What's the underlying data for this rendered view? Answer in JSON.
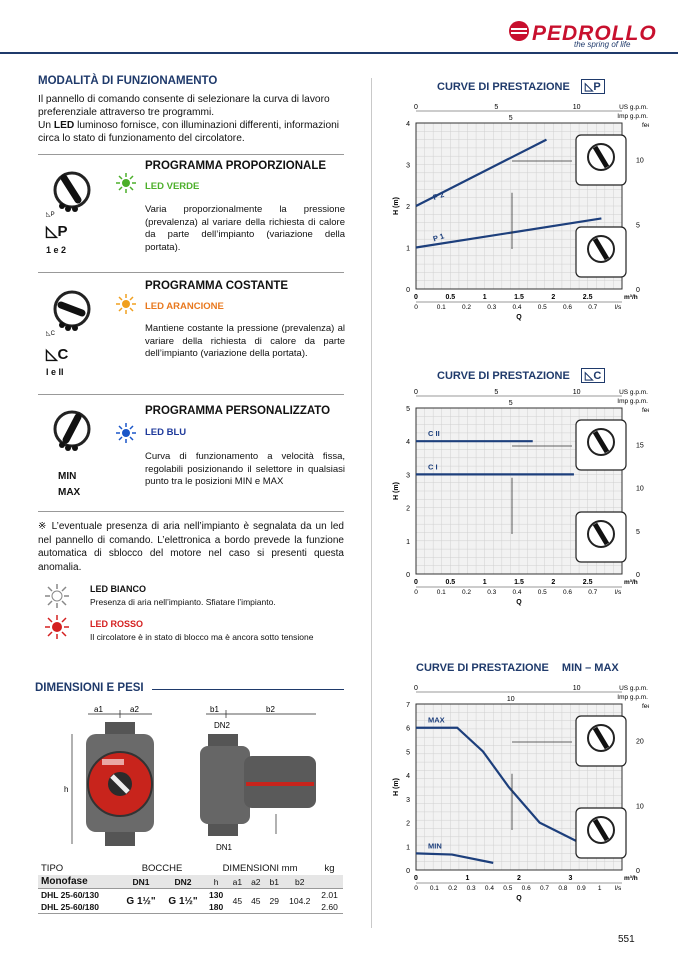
{
  "header": {
    "brand": "PEDROLLO",
    "tagline": "the spring of life"
  },
  "modes": {
    "title": "MODALITÀ DI FUNZIONAMENTO",
    "intro1": "Il pannello di comando consente di selezionare la curva di lavoro preferenziale attraverso tre programmi.",
    "intro2a": "Un ",
    "intro2b": "LED",
    "intro2c": " luminoso fornisce, con illuminazioni differenti, informazioni circa lo stato di funzionamento del circolatore.",
    "programs": [
      {
        "title": "PROGRAMMA PROPORZIONALE",
        "led": "LED VERDE",
        "led_color": "#4caf2a",
        "desc": "Varia proporzionalmente la pressione (prevalenza) al variare della richiesta di calore da parte dell’impianto (variazione della portata).",
        "symbol": "P",
        "labels": "1 e 2"
      },
      {
        "title": "PROGRAMMA COSTANTE",
        "led": "LED ARANCIONE",
        "led_color": "#f0a020",
        "led_text_color": "#e8781e",
        "desc": "Mantiene costante la pressione (prevalenza) al variare della richiesta di calore da parte dell’impianto (variazione della portata).",
        "symbol": "C",
        "labels": "I e II"
      },
      {
        "title": "PROGRAMMA PERSONALIZZATO",
        "led": "LED BLU",
        "led_color": "#1a56c8",
        "led_text_color": "#1f3a9b",
        "desc": "Curva di funzionamento a velocità fissa, regolabili posizionando il selettore in qualsiasi punto tra le posizioni MIN e MAX",
        "symbol_min": "MIN",
        "symbol_max": "MAX"
      }
    ],
    "note": "※ L’eventuale presenza di aria nell’impianto è segnalata da un led nel pannello di comando. L’elettronica a bordo prevede la funzione automatica di sblocco del motore nel caso si presenti questa anomalia.",
    "led_white": {
      "title": "LED BIANCO",
      "desc": "Presenza di aria nell’impianto. Sfiatare l’impianto."
    },
    "led_red": {
      "title": "LED ROSSO",
      "desc": "Il circolatore è in stato di blocco ma è ancora sotto tensione",
      "color": "#d42020"
    }
  },
  "dimensions": {
    "title": "DIMENSIONI E PESI",
    "labels": {
      "a1": "a1",
      "a2": "a2",
      "b1": "b1",
      "b2": "b2",
      "dn1": "DN1",
      "dn2": "DN2",
      "h": "h"
    },
    "table": {
      "h_tipo": "TIPO",
      "h_monofase": "Monofase",
      "h_bocche": "BOCCHE",
      "h_dn1": "DN1",
      "h_dn2": "DN2",
      "h_dim": "DIMENSIONI mm",
      "h_kg": "kg",
      "cols": [
        "h",
        "a1",
        "a2",
        "b1",
        "b2"
      ],
      "rows": [
        {
          "model": "DHL 25-60/130",
          "h": "130",
          "kg": "2.01"
        },
        {
          "model": "DHL 25-60/180",
          "h": "180",
          "kg": "2.60"
        }
      ],
      "dn1": "G 1½\"",
      "dn2": "G 1½\"",
      "a1": "45",
      "a2": "45",
      "b1": "29",
      "b2": "104.2"
    }
  },
  "charts": {
    "title": "CURVE DI PRESTAZIONE",
    "units": {
      "usgpm": "US g.p.m.",
      "impgpm": "Imp g.p.m.",
      "feet": "feet",
      "m3h": "m³/h",
      "ls": "l/s",
      "H": "H (m)",
      "Q": "Q"
    },
    "chart_p_symbol": "P",
    "chart_c_symbol": "C",
    "chart_mm_symbol": "MIN – MAX"
  },
  "chart_data": [
    {
      "type": "line",
      "title": "CURVE DI PRESTAZIONE P",
      "xlabel": "Q",
      "ylabel": "H (m)",
      "xlim": [
        0,
        3
      ],
      "ylim": [
        0,
        4
      ],
      "x_ticks": [
        "0",
        "0.5",
        "1",
        "1.5",
        "2",
        "2.5"
      ],
      "y_ticks": [
        "0",
        "1",
        "2",
        "3",
        "4"
      ],
      "ls_ticks": [
        "0",
        "0.1",
        "0.2",
        "0.3",
        "0.4",
        "0.5",
        "0.6",
        "0.7",
        "l/s"
      ],
      "us_ticks": [
        "0",
        "5",
        "10"
      ],
      "imp_ticks": [
        "5"
      ],
      "ft_ticks": [
        "0",
        "5",
        "10"
      ],
      "series": [
        {
          "name": "P 2",
          "x": [
            0,
            1.9
          ],
          "y": [
            2.0,
            3.6
          ]
        },
        {
          "name": "P 1",
          "x": [
            0,
            2.7
          ],
          "y": [
            1.0,
            1.7
          ]
        }
      ]
    },
    {
      "type": "line",
      "title": "CURVE DI PRESTAZIONE C",
      "xlabel": "Q",
      "ylabel": "H (m)",
      "xlim": [
        0,
        3
      ],
      "ylim": [
        0,
        5
      ],
      "x_ticks": [
        "0",
        "0.5",
        "1",
        "1.5",
        "2",
        "2.5"
      ],
      "y_ticks": [
        "0",
        "1",
        "2",
        "3",
        "4",
        "5"
      ],
      "ls_ticks": [
        "0",
        "0.1",
        "0.2",
        "0.3",
        "0.4",
        "0.5",
        "0.6",
        "0.7",
        "l/s"
      ],
      "us_ticks": [
        "0",
        "5",
        "10"
      ],
      "imp_ticks": [
        "5"
      ],
      "ft_ticks": [
        "0",
        "5",
        "10",
        "15"
      ],
      "series": [
        {
          "name": "C II",
          "x": [
            0,
            1.7
          ],
          "y": [
            4.0,
            4.0
          ]
        },
        {
          "name": "C I",
          "x": [
            0,
            2.3
          ],
          "y": [
            3.0,
            3.0
          ]
        }
      ]
    },
    {
      "type": "line",
      "title": "CURVE DI PRESTAZIONE MIN – MAX",
      "xlabel": "Q",
      "ylabel": "H (m)",
      "xlim": [
        0,
        4
      ],
      "ylim": [
        0,
        7
      ],
      "x_ticks": [
        "0",
        "1",
        "2",
        "3"
      ],
      "y_ticks": [
        "0",
        "1",
        "2",
        "3",
        "4",
        "5",
        "6",
        "7"
      ],
      "ls_ticks": [
        "0",
        "0.1",
        "0.2",
        "0.3",
        "0.4",
        "0.5",
        "0.6",
        "0.7",
        "0.8",
        "0.9",
        "1",
        "l/s"
      ],
      "us_ticks": [
        "0",
        "10"
      ],
      "imp_ticks": [
        "10"
      ],
      "ft_ticks": [
        "0",
        "10",
        "20"
      ],
      "series": [
        {
          "name": "MAX",
          "x": [
            0,
            0.8,
            1.3,
            1.8,
            2.4,
            3.5
          ],
          "y": [
            6.0,
            6.0,
            5.0,
            3.5,
            2.0,
            0.8
          ]
        },
        {
          "name": "MIN",
          "x": [
            0,
            0.7,
            1.5
          ],
          "y": [
            0.7,
            0.65,
            0.3
          ]
        }
      ]
    }
  ],
  "page": {
    "number": "551"
  }
}
